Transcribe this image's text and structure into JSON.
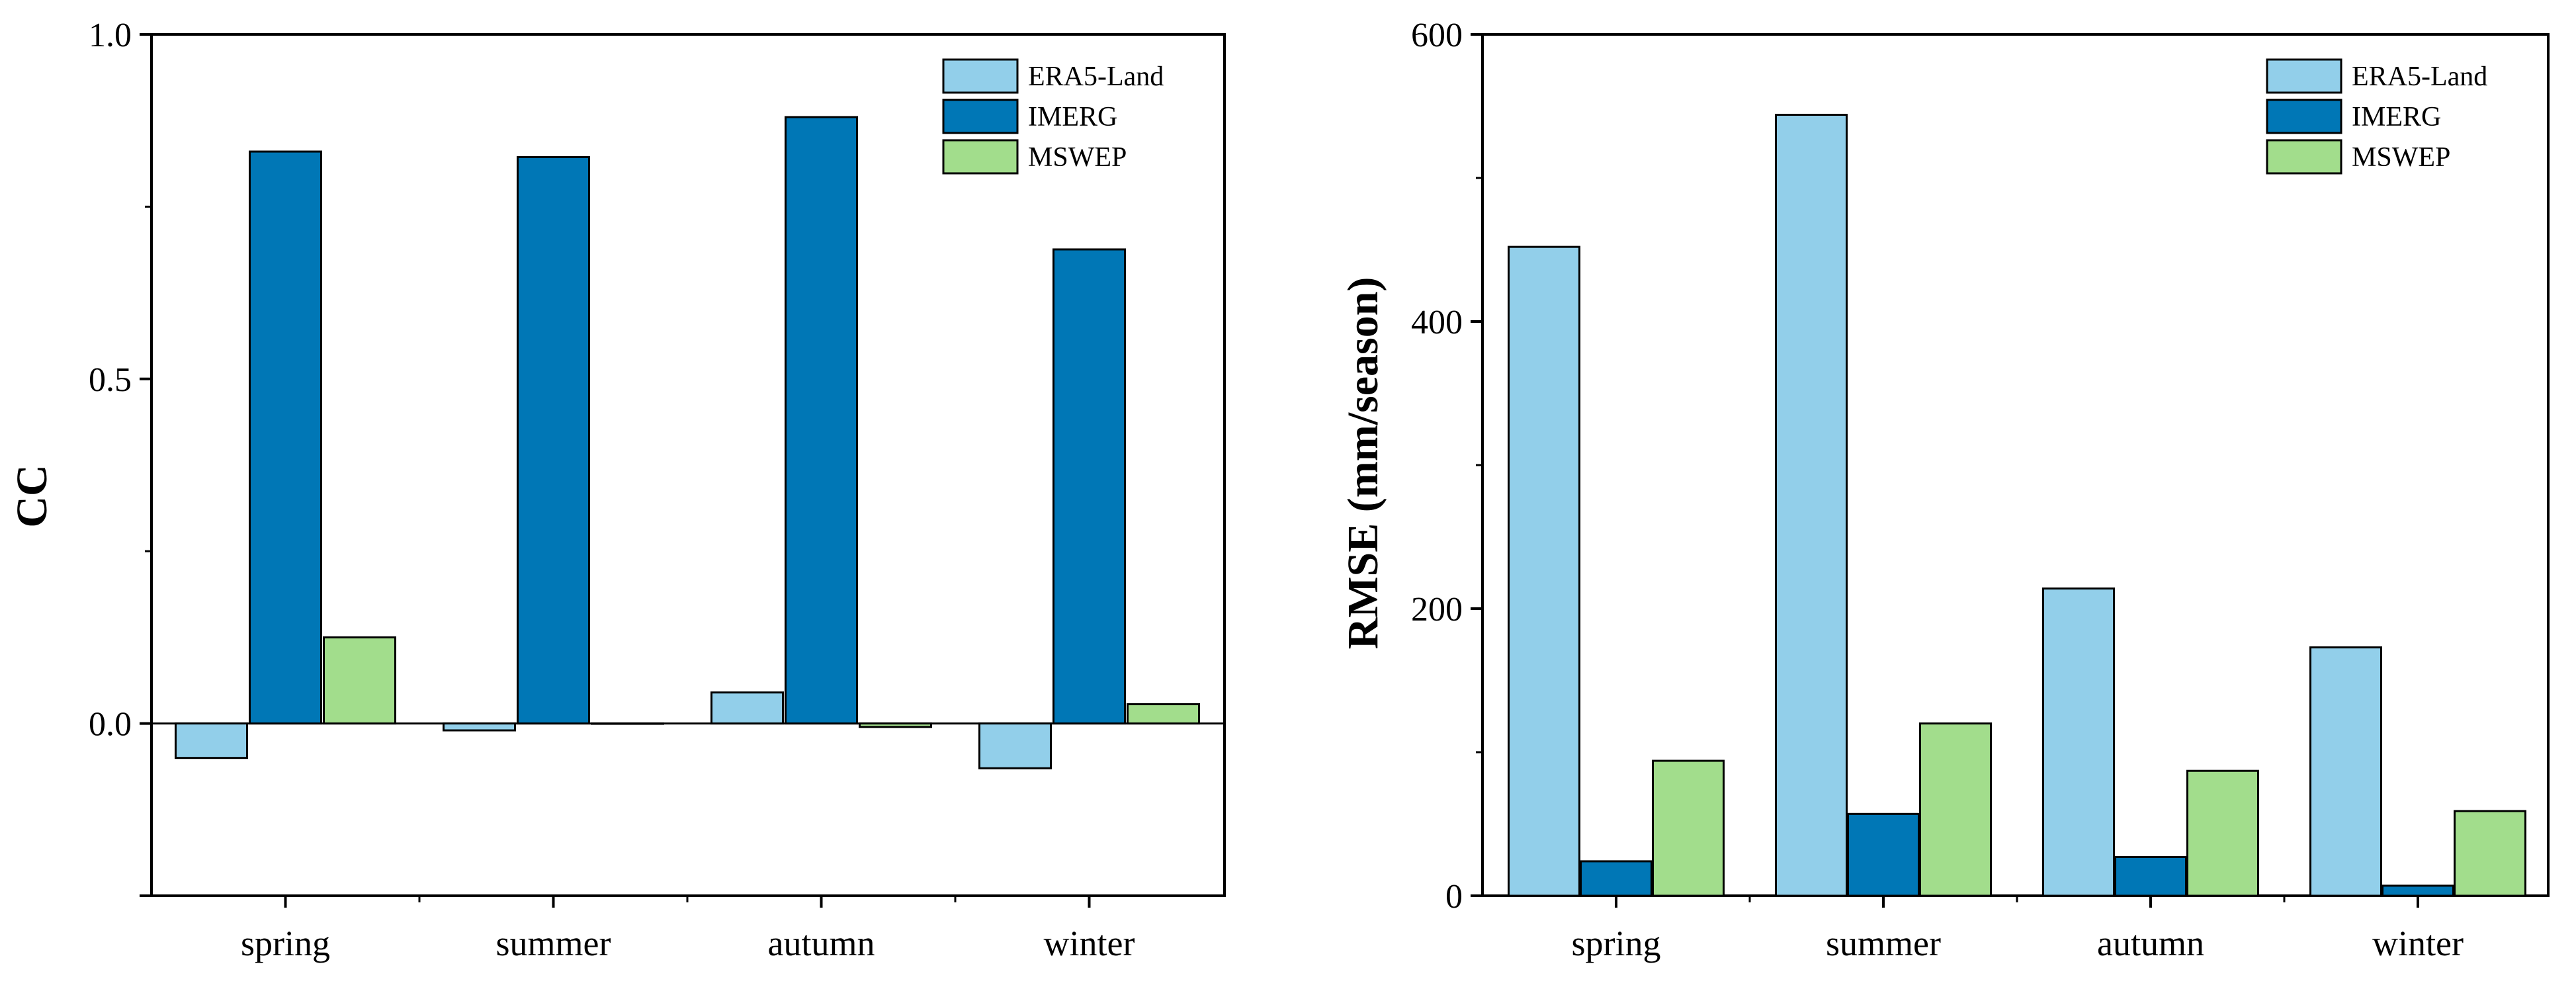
{
  "chart_data": [
    {
      "type": "bar",
      "ylabel": "CC",
      "xlabel": "",
      "ylim": [
        -0.25,
        1.0
      ],
      "yticks": [
        0.0,
        0.5,
        1.0
      ],
      "ytick_labels": [
        "0.0",
        "0.5",
        "1.0"
      ],
      "categories": [
        "spring",
        "summer",
        "autumn",
        "winter"
      ],
      "series": [
        {
          "name": "ERA5-Land",
          "color": "#92CFEA",
          "values": [
            -0.05,
            -0.01,
            0.045,
            -0.065
          ]
        },
        {
          "name": "IMERG",
          "color": "#0077B6",
          "values": [
            0.83,
            0.822,
            0.88,
            0.688
          ]
        },
        {
          "name": "MSWEP",
          "color": "#A2DD8C",
          "values": [
            0.125,
            0.0,
            -0.005,
            0.028
          ]
        }
      ],
      "legend": "top-right"
    },
    {
      "type": "bar",
      "ylabel": "RMSE (mm/season)",
      "xlabel": "",
      "ylim": [
        0,
        600
      ],
      "yticks": [
        0,
        200,
        400,
        600
      ],
      "ytick_labels": [
        "0",
        "200",
        "400",
        "600"
      ],
      "categories": [
        "spring",
        "summer",
        "autumn",
        "winter"
      ],
      "series": [
        {
          "name": "ERA5-Land",
          "color": "#92CFEA",
          "values": [
            452,
            544,
            214,
            173
          ]
        },
        {
          "name": "IMERG",
          "color": "#0077B6",
          "values": [
            24,
            57,
            27,
            7
          ]
        },
        {
          "name": "MSWEP",
          "color": "#A2DD8C",
          "values": [
            94,
            120,
            87,
            59
          ]
        }
      ],
      "legend": "top-right"
    }
  ]
}
